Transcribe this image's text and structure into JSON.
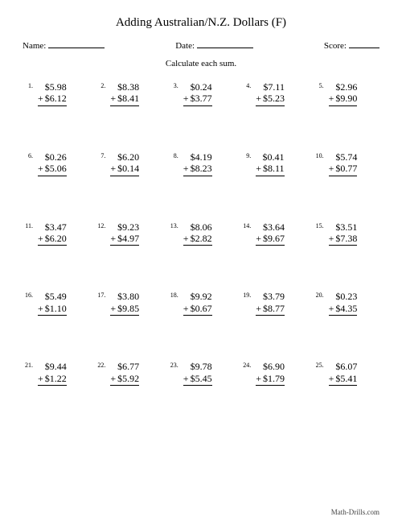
{
  "title": "Adding Australian/N.Z. Dollars (F)",
  "meta": {
    "name_label": "Name:",
    "date_label": "Date:",
    "score_label": "Score:"
  },
  "instruction": "Calculate each sum.",
  "problems": [
    {
      "n": "1.",
      "a": "$5.98",
      "b": "$6.12"
    },
    {
      "n": "2.",
      "a": "$8.38",
      "b": "$8.41"
    },
    {
      "n": "3.",
      "a": "$0.24",
      "b": "$3.77"
    },
    {
      "n": "4.",
      "a": "$7.11",
      "b": "$5.23"
    },
    {
      "n": "5.",
      "a": "$2.96",
      "b": "$9.90"
    },
    {
      "n": "6.",
      "a": "$0.26",
      "b": "$5.06"
    },
    {
      "n": "7.",
      "a": "$6.20",
      "b": "$0.14"
    },
    {
      "n": "8.",
      "a": "$4.19",
      "b": "$8.23"
    },
    {
      "n": "9.",
      "a": "$0.41",
      "b": "$8.11"
    },
    {
      "n": "10.",
      "a": "$5.74",
      "b": "$0.77"
    },
    {
      "n": "11.",
      "a": "$3.47",
      "b": "$6.20"
    },
    {
      "n": "12.",
      "a": "$9.23",
      "b": "$4.97"
    },
    {
      "n": "13.",
      "a": "$8.06",
      "b": "$2.82"
    },
    {
      "n": "14.",
      "a": "$3.64",
      "b": "$9.67"
    },
    {
      "n": "15.",
      "a": "$3.51",
      "b": "$7.38"
    },
    {
      "n": "16.",
      "a": "$5.49",
      "b": "$1.10"
    },
    {
      "n": "17.",
      "a": "$3.80",
      "b": "$9.85"
    },
    {
      "n": "18.",
      "a": "$9.92",
      "b": "$0.67"
    },
    {
      "n": "19.",
      "a": "$3.79",
      "b": "$8.77"
    },
    {
      "n": "20.",
      "a": "$0.23",
      "b": "$4.35"
    },
    {
      "n": "21.",
      "a": "$9.44",
      "b": "$1.22"
    },
    {
      "n": "22.",
      "a": "$6.77",
      "b": "$5.92"
    },
    {
      "n": "23.",
      "a": "$9.78",
      "b": "$5.45"
    },
    {
      "n": "24.",
      "a": "$6.90",
      "b": "$1.79"
    },
    {
      "n": "25.",
      "a": "$6.07",
      "b": "$5.41"
    }
  ],
  "footer": "Math-Drills.com",
  "style": {
    "background": "#ffffff",
    "text_color": "#000000",
    "columns": 5,
    "rows": 5,
    "title_fontsize": 15,
    "meta_fontsize": 11,
    "problem_fontsize": 12,
    "footer_fontsize": 9
  }
}
